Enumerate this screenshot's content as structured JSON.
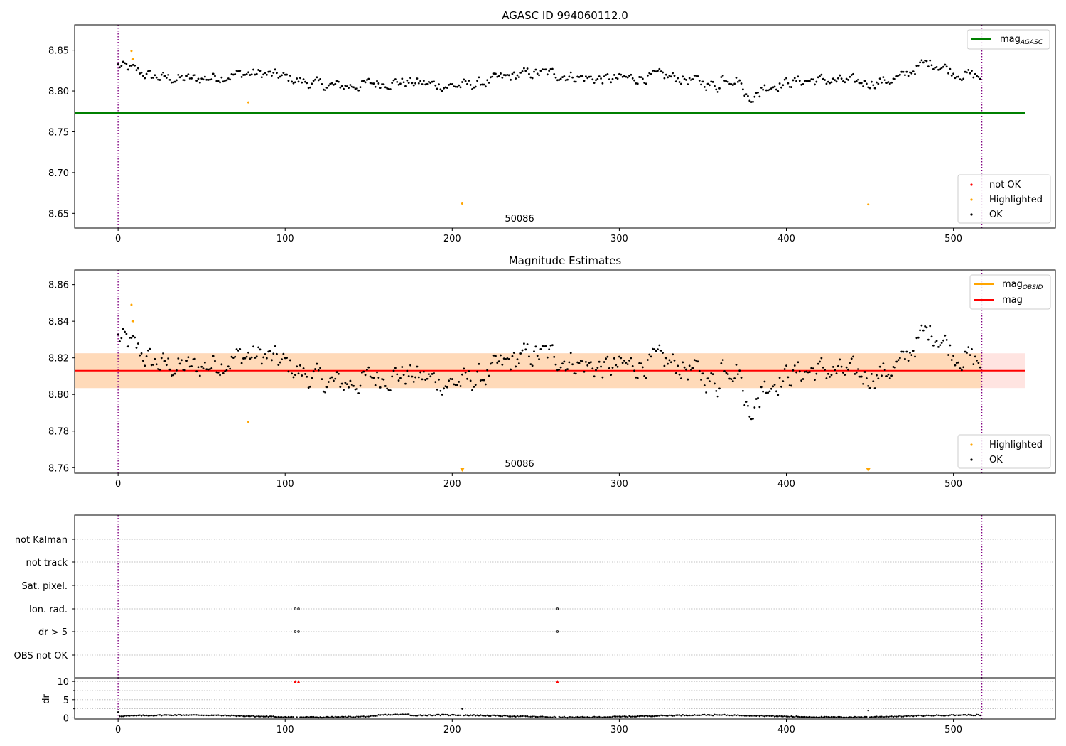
{
  "figure": {
    "colors": {
      "ok": "#000000",
      "highlighted": "#ffa500",
      "not_ok": "#ff0000",
      "mag_agasc": "#008000",
      "mag_obsid": "#ffa500",
      "mag": "#ff0000",
      "band_fill": "#ffdab9",
      "band_edge": "#ffe4e1",
      "obs_boundary": "#800080"
    }
  },
  "chart_data": [
    {
      "type": "scatter",
      "title": "AGASC ID 994060112.0",
      "xlabel": "",
      "ylabel": "",
      "xlim": [
        -26,
        561
      ],
      "ylim": [
        8.632,
        8.881
      ],
      "xticks": [
        0,
        100,
        200,
        300,
        400,
        500
      ],
      "yticks": [
        8.65,
        8.7,
        8.75,
        8.8,
        8.85
      ],
      "grid": false,
      "obs_boundaries": [
        0,
        517
      ],
      "obsid_label": "50086",
      "mag_agasc": 8.773,
      "mag_agasc_extent": [
        -26,
        543
      ],
      "legend_lines": {
        "position": "upper right",
        "entries": [
          "mag_AGASC"
        ]
      },
      "legend_points": {
        "position": "lower right",
        "entries": [
          "not OK",
          "Highlighted",
          "OK"
        ]
      },
      "series": [
        {
          "name": "OK",
          "n": 517,
          "x_range": [
            0,
            517
          ],
          "baseline": 8.813,
          "min": 8.789,
          "max": 8.836
        },
        {
          "name": "Highlighted",
          "points": [
            [
              8,
              8.849
            ],
            [
              9,
              8.839
            ],
            [
              78,
              8.786
            ],
            [
              206,
              8.662
            ],
            [
              449,
              8.661
            ]
          ]
        },
        {
          "name": "not OK",
          "points": []
        }
      ]
    },
    {
      "type": "scatter",
      "title": "Magnitude Estimates",
      "xlabel": "",
      "ylabel": "",
      "xlim": [
        -26,
        561
      ],
      "ylim": [
        8.757,
        8.868
      ],
      "xticks": [
        0,
        100,
        200,
        300,
        400,
        500
      ],
      "yticks": [
        8.76,
        8.78,
        8.8,
        8.82,
        8.84,
        8.86
      ],
      "grid": false,
      "obs_boundaries": [
        0,
        517
      ],
      "obsid_label": "50086",
      "mag": 8.813,
      "mag_band": [
        8.8035,
        8.8225
      ],
      "band_extent": [
        -26,
        543
      ],
      "legend_lines": {
        "position": "upper right",
        "entries": [
          "mag_OBSID",
          "mag"
        ]
      },
      "legend_points": {
        "position": "lower right",
        "entries": [
          "Highlighted",
          "OK"
        ]
      },
      "series": [
        {
          "name": "OK",
          "n": 517,
          "x_range": [
            0,
            517
          ]
        },
        {
          "name": "Highlighted",
          "points": [
            [
              8,
              8.849
            ],
            [
              9,
              8.84
            ],
            [
              78,
              8.785
            ]
          ]
        },
        {
          "name": "Highlighted (below axis)",
          "points": [
            [
              206,
              "below"
            ],
            [
              449,
              "below"
            ]
          ]
        }
      ]
    },
    {
      "type": "scatter",
      "title": "",
      "xlabel": "",
      "ylabel": "",
      "xlim": [
        -26,
        561
      ],
      "categories": [
        "not Kalman",
        "not track",
        "Sat. pixel.",
        "Ion. rad.",
        "dr > 5",
        "OBS not OK"
      ],
      "flags": {
        "Ion. rad.": [
          106,
          108,
          263
        ],
        "dr > 5": [
          106,
          108,
          263
        ]
      },
      "obs_boundaries": [
        0,
        517
      ]
    },
    {
      "type": "scatter",
      "title": "",
      "xlabel": "",
      "ylabel": "dr",
      "xlim": [
        -26,
        561
      ],
      "ylim": [
        -0.3,
        11
      ],
      "xticks": [
        0,
        100,
        200,
        300,
        400,
        500
      ],
      "yticks": [
        0,
        5,
        10
      ],
      "obs_boundaries": [
        0,
        517
      ],
      "series": [
        {
          "name": "dr",
          "n": 517,
          "x_range": [
            0,
            517
          ],
          "typical": [
            0.1,
            1.2
          ]
        },
        {
          "name": "dr outliers",
          "points": [
            [
              206,
              2.5
            ],
            [
              449,
              2.0
            ]
          ]
        },
        {
          "name": "dr > 10 (clipped)",
          "points": [
            [
              106,
              10
            ],
            [
              108,
              10
            ],
            [
              263,
              10
            ]
          ]
        }
      ]
    }
  ]
}
